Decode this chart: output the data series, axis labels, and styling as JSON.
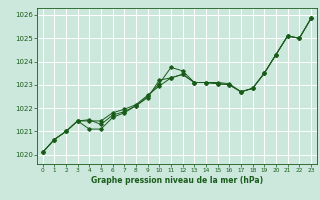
{
  "title": "Graphe pression niveau de la mer (hPa)",
  "bg_color": "#cce8dd",
  "grid_color": "#ffffff",
  "line_color": "#1a5c1a",
  "marker_color": "#1a5c1a",
  "xlim": [
    -0.5,
    23.5
  ],
  "ylim": [
    1019.6,
    1026.3
  ],
  "yticks": [
    1020,
    1021,
    1022,
    1023,
    1024,
    1025,
    1026
  ],
  "xticks": [
    0,
    1,
    2,
    3,
    4,
    5,
    6,
    7,
    8,
    9,
    10,
    11,
    12,
    13,
    14,
    15,
    16,
    17,
    18,
    19,
    20,
    21,
    22,
    23
  ],
  "series": [
    [
      1020.1,
      1020.65,
      1021.0,
      1021.45,
      1021.5,
      1021.3,
      1021.7,
      1021.85,
      1022.1,
      1022.5,
      1023.05,
      1023.75,
      1023.6,
      1023.1,
      1023.1,
      1023.1,
      1023.05,
      1022.7,
      1022.85,
      1023.5,
      1024.3,
      1025.1,
      1025.0,
      1025.85
    ],
    [
      1020.1,
      1020.65,
      1021.0,
      1021.45,
      1021.1,
      1021.1,
      1021.6,
      1021.8,
      1022.1,
      1022.45,
      1023.2,
      1023.3,
      1023.45,
      1023.1,
      1023.1,
      1023.05,
      1023.0,
      1022.7,
      1022.85,
      1023.5,
      1024.3,
      1025.1,
      1025.0,
      1025.85
    ],
    [
      1020.1,
      1020.65,
      1021.0,
      1021.45,
      1021.45,
      1021.45,
      1021.8,
      1021.95,
      1022.15,
      1022.55,
      1022.95,
      1023.3,
      1023.45,
      1023.1,
      1023.1,
      1023.05,
      1023.0,
      1022.7,
      1022.85,
      1023.5,
      1024.3,
      1025.1,
      1025.0,
      1025.85
    ]
  ]
}
